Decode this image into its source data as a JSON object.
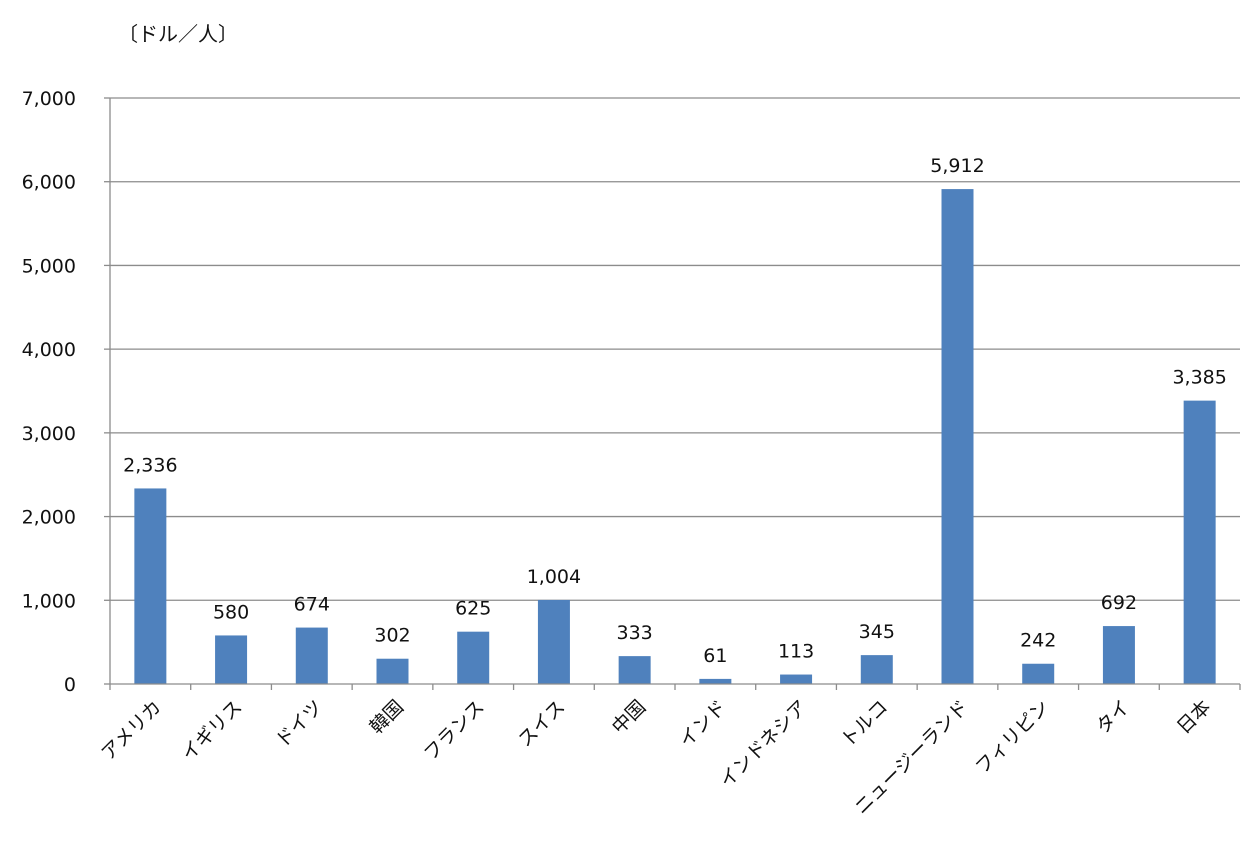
{
  "chart_data": {
    "type": "bar",
    "unit_label": "〔ドル／人〕",
    "categories": [
      "アメリカ",
      "イギリス",
      "ドイツ",
      "韓国",
      "フランス",
      "スイス",
      "中国",
      "インド",
      "インドネシア",
      "トルコ",
      "ニュージーランド",
      "フィリピン",
      "タイ",
      "日本"
    ],
    "values": [
      2336,
      580,
      674,
      302,
      625,
      1004,
      333,
      61,
      113,
      345,
      5912,
      242,
      692,
      3385
    ],
    "data_labels": [
      "2,336",
      "580",
      "674",
      "302",
      "625",
      "1,004",
      "333",
      "61",
      "113",
      "345",
      "5,912",
      "242",
      "692",
      "3,385"
    ],
    "yticks": [
      "0",
      "1,000",
      "2,000",
      "3,000",
      "4,000",
      "5,000",
      "6,000",
      "7,000"
    ],
    "ylim": [
      0,
      7000
    ],
    "grid": true,
    "legend": "none",
    "colors": {
      "bar": "#4f81bd",
      "grid": "#8c8c8c",
      "axis": "#8c8c8c"
    }
  }
}
